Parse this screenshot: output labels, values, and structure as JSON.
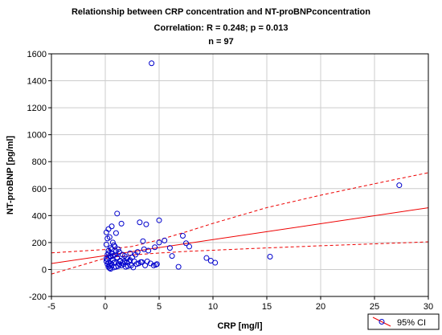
{
  "chart_data": {
    "type": "scatter",
    "title": "Relationship between CRP concentration and NT-proBNPconcentration",
    "subtitle": "Correlation: R = 0.248; p = 0.013",
    "subtitle2": "n = 97",
    "xlabel": "CRP [mg/l]",
    "ylabel": "NT-proBNP [pg/ml]",
    "xlim": [
      -5,
      30
    ],
    "ylim": [
      -200,
      1600
    ],
    "xticks": [
      "-5",
      "0",
      "5",
      "10",
      "15",
      "20",
      "25",
      "30"
    ],
    "yticks": [
      "-200",
      "0",
      "200",
      "400",
      "600",
      "800",
      "1000",
      "1200",
      "1400",
      "1600"
    ],
    "grid": true,
    "legend": {
      "label": "95% CI",
      "position": "bottom-right"
    },
    "colors": {
      "points": "#0000cc",
      "fit": "#ee0000",
      "grid": "#cccccc"
    },
    "regression": {
      "x": [
        -5,
        30
      ],
      "y": [
        44,
        458
      ]
    },
    "ci_upper": {
      "x": [
        -5,
        0,
        2.5,
        5,
        7.5,
        10,
        15,
        20,
        25,
        30
      ],
      "y": [
        123,
        148,
        171,
        220,
        279,
        342,
        459,
        551,
        636,
        718
      ]
    },
    "ci_lower": {
      "x": [
        -5,
        0,
        2.5,
        5,
        7.5,
        10,
        15,
        20,
        25,
        30
      ],
      "y": [
        -34,
        84,
        108,
        122,
        134,
        143,
        160,
        176,
        190,
        205
      ]
    },
    "series": [
      {
        "x": [
          4.3,
          27.3,
          1.1,
          3.2,
          0.1,
          0.3,
          0.6,
          0.2,
          0.4,
          0.7,
          1.5,
          3.8,
          0.5,
          0.8,
          1.2,
          4.6,
          5.0,
          3.5,
          7.5,
          0.3,
          0.9,
          1.3,
          2.3,
          5.0,
          5.5,
          6.0,
          7.2,
          0.2,
          0.4,
          0.6,
          1.0,
          1.8,
          2.5,
          3.0,
          4.0,
          7.8,
          0.1,
          0.5,
          0.9,
          1.4,
          2.0,
          2.8,
          3.6,
          4.8,
          6.2,
          0.3,
          0.7,
          1.1,
          1.6,
          2.2,
          3.3,
          4.2,
          6.8,
          0.2,
          0.4,
          0.8,
          1.2,
          1.7,
          2.4,
          3.1,
          3.9,
          4.7,
          0.1,
          0.3,
          0.6,
          1.0,
          1.5,
          2.1,
          2.9,
          3.7,
          0.4,
          0.8,
          1.3,
          1.9,
          2.6,
          9.4,
          9.8,
          10.2,
          15.3,
          0.2,
          0.5,
          0.9,
          1.4,
          2.0,
          2.7,
          4.5,
          0.3,
          0.7,
          1.1,
          1.6,
          2.3,
          3.4,
          0.1,
          0.6,
          1.0,
          1.8,
          0.5
        ],
        "y": [
          1530,
          625,
          415,
          350,
          275,
          300,
          320,
          230,
          240,
          200,
          340,
          335,
          160,
          180,
          150,
          165,
          365,
          210,
          195,
          140,
          170,
          130,
          120,
          200,
          215,
          160,
          250,
          110,
          100,
          120,
          135,
          100,
          90,
          130,
          140,
          170,
          80,
          95,
          110,
          60,
          80,
          110,
          150,
          40,
          100,
          50,
          70,
          90,
          50,
          60,
          55,
          45,
          20,
          40,
          30,
          50,
          25,
          40,
          30,
          45,
          60,
          35,
          60,
          20,
          35,
          20,
          30,
          25,
          40,
          30,
          10,
          15,
          40,
          20,
          15,
          85,
          65,
          50,
          95,
          75,
          45,
          55,
          65,
          55,
          60,
          30,
          120,
          100,
          85,
          110,
          70,
          55,
          185,
          150,
          270,
          60,
          5
        ]
      }
    ]
  }
}
